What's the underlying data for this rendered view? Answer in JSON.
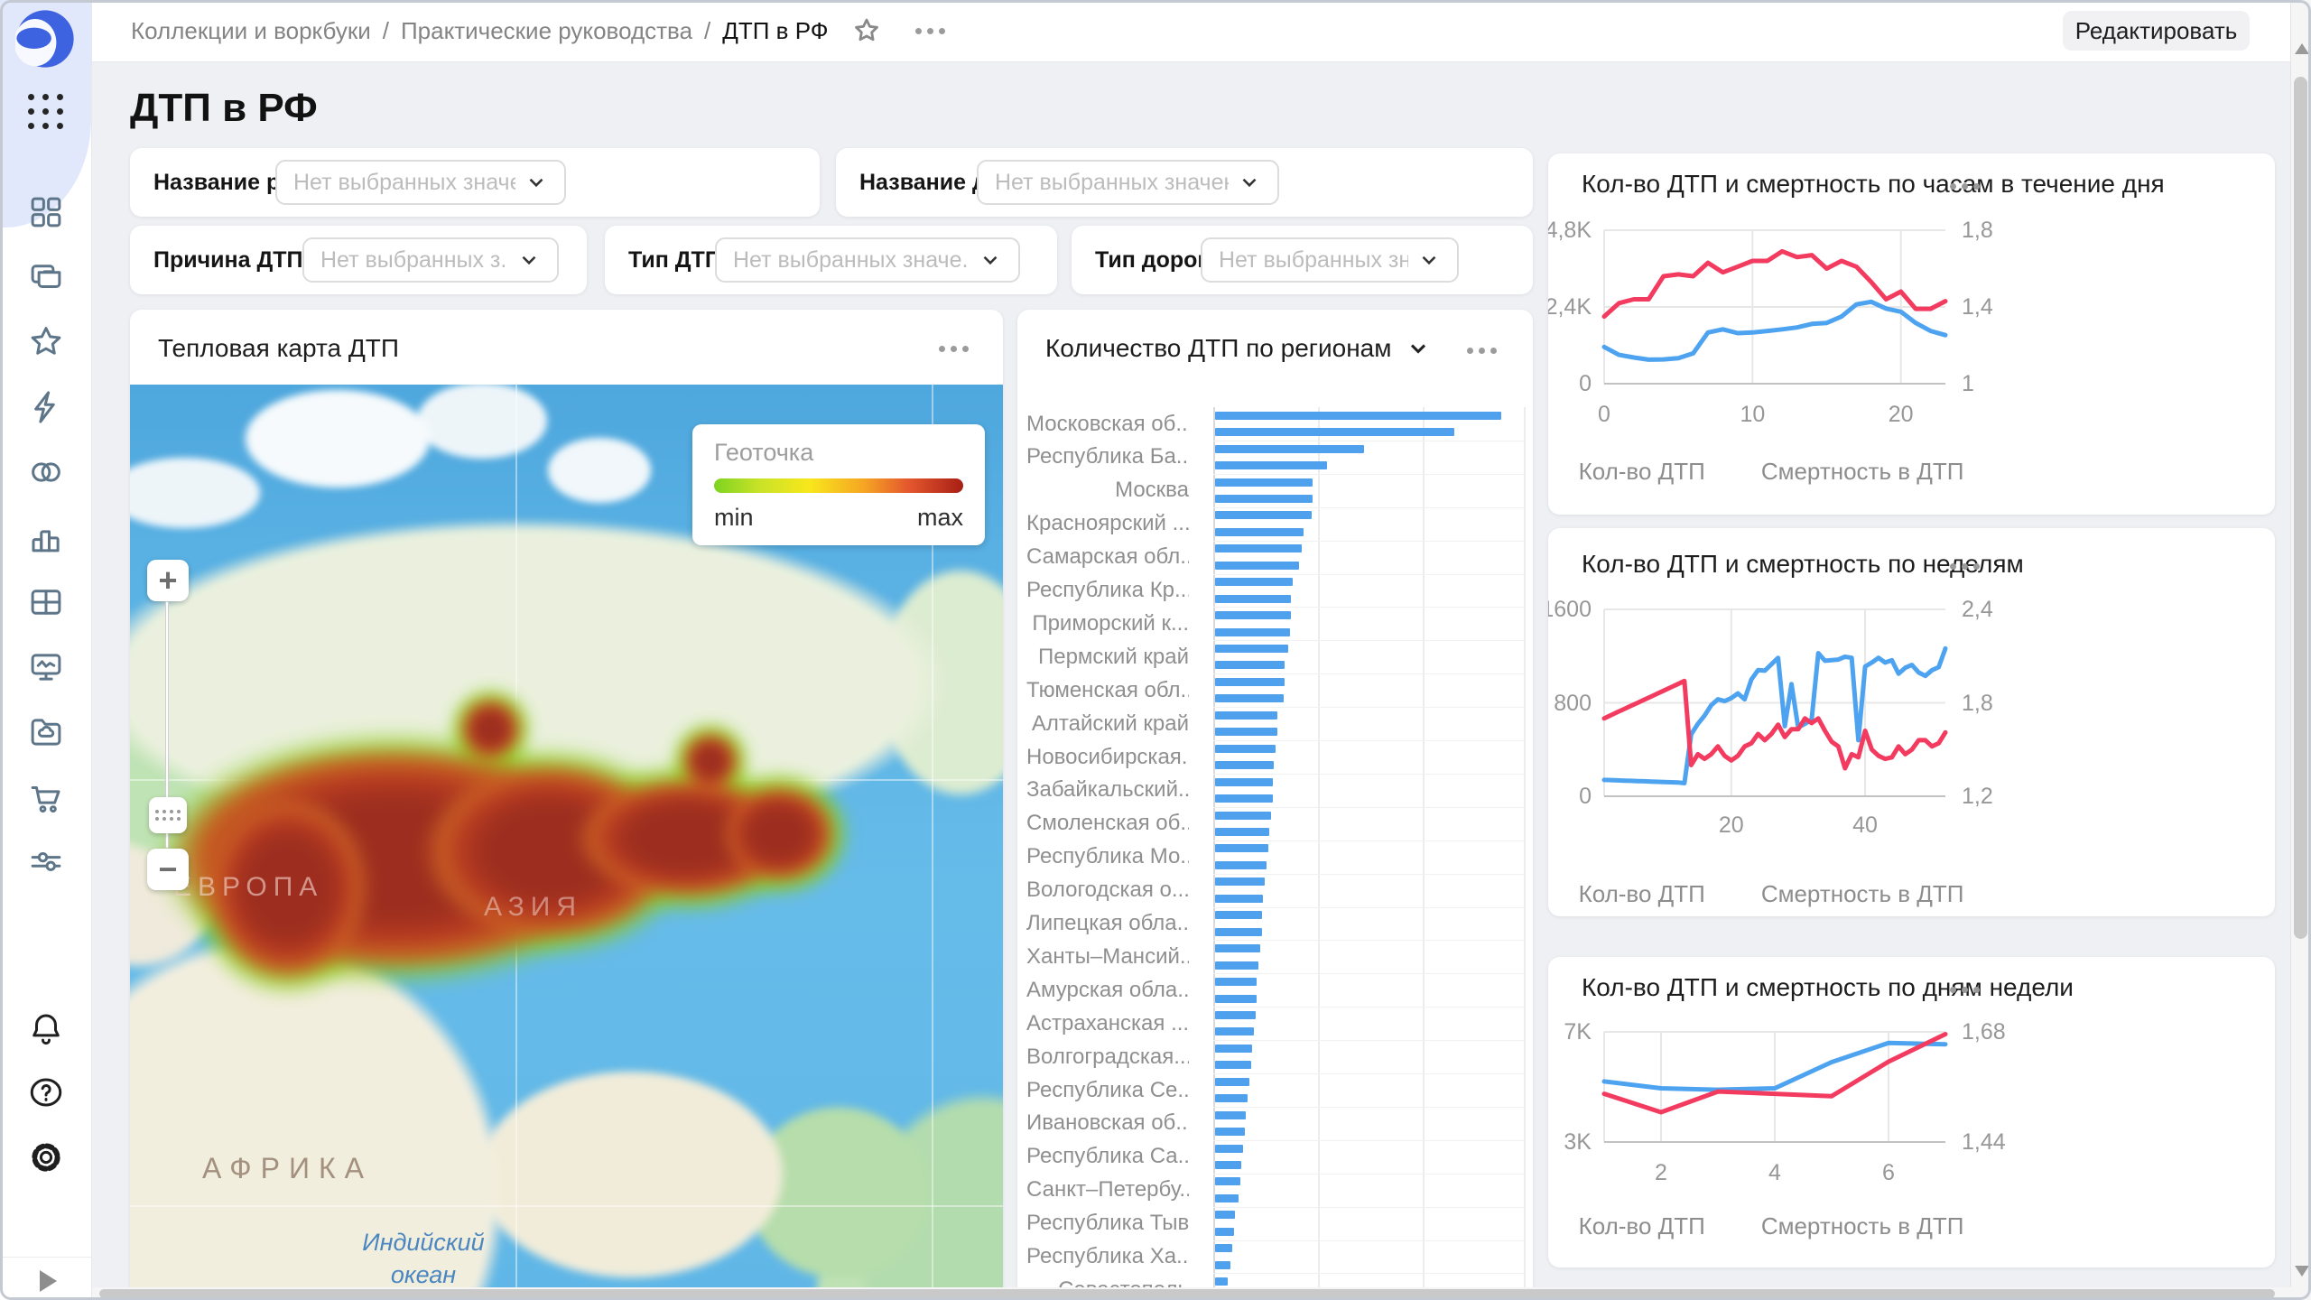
{
  "colors": {
    "accent_blue": "#4da3f0",
    "accent_red": "#f23b5f",
    "bar_blue": "#4fa1ee",
    "page_bg": "#eef0f4",
    "sidebar_logo_bg": "#e2e8fb"
  },
  "chrome": {
    "breadcrumb": [
      "Коллекции и воркбуки",
      "Практические руководства",
      "ДТП в РФ"
    ],
    "separator": "/",
    "edit_label": "Редактировать"
  },
  "sidebar": {
    "icons": [
      "logo",
      "apps-grid",
      "dashboards-grid",
      "collections",
      "star",
      "lightning",
      "datasets-circles",
      "bar-chart",
      "table",
      "monitor-pulse",
      "folder-cloud",
      "cart",
      "sliders",
      "bell",
      "help",
      "gear",
      "expand"
    ]
  },
  "page_title": "ДТП в РФ",
  "filters": {
    "row1": [
      {
        "label": "Название региона",
        "placeholder": "Нет выбранных значений"
      },
      {
        "label": "Название дороги",
        "placeholder": "Нет выбранных значений"
      }
    ],
    "row2": [
      {
        "label": "Причина ДТП",
        "placeholder": "Нет выбранных з..."
      },
      {
        "label": "Тип ДТП",
        "placeholder": "Нет выбранных значе..."
      },
      {
        "label": "Тип дороги",
        "placeholder": "Нет выбранных зна..."
      }
    ]
  },
  "heatmap": {
    "title": "Тепловая карта ДТП",
    "legend": {
      "title": "Геоточка",
      "min": "min",
      "max": "max"
    },
    "controls": {
      "zoom_in": "+",
      "zoom_out": "−"
    },
    "map_labels": {
      "europe": "ЕВРОПА",
      "asia": "АЗИЯ",
      "africa": "АФРИКА",
      "ocean_line1": "Индийский",
      "ocean_line2": "океан"
    }
  },
  "regions": {
    "title": "Количество ДТП по регионам",
    "chart_data": {
      "type": "bar",
      "orientation": "horizontal",
      "note": "two bars per visible category label; values are percent of x-axis span",
      "categories": [
        "Московская об...",
        "Республика Ба...",
        "Москва",
        "Красноярский ...",
        "Самарская обл...",
        "Республика Кр...",
        "Приморский к...",
        "Пермский край",
        "Тюменская обл...",
        "Алтайский край",
        "Новосибирская...",
        "Забайкальский...",
        "Смоленская об...",
        "Республика Мо...",
        "Вологодская о...",
        "Липецкая обла...",
        "Ханты–Мансий...",
        "Амурская обла...",
        "Астраханская ...",
        "Волгоградская...",
        "Республика Се...",
        "Ивановская об...",
        "Республика Са...",
        "Санкт–Петербу...",
        "Республика Тыва",
        "Республика Ха...",
        "Севастополь"
      ],
      "values": [
        92,
        77,
        48,
        36,
        31.5,
        31.5,
        31,
        28.5,
        28,
        27,
        25,
        24.5,
        24.5,
        24,
        23.5,
        22.5,
        22.5,
        22,
        20,
        20,
        19.5,
        19,
        18.5,
        18.5,
        18,
        17.5,
        17,
        16.5,
        16,
        15.5,
        15,
        15,
        14.5,
        14,
        13.5,
        13.5,
        13,
        12.5,
        12,
        11.5,
        11,
        10.5,
        10,
        9.5,
        9,
        8.5,
        8,
        7.5,
        6.5,
        6,
        5.5,
        5,
        4,
        3
      ]
    }
  },
  "right_charts": [
    {
      "title": "Кол-во ДТП и смертность по часам в течение дня",
      "chart_data": {
        "type": "line",
        "x": {
          "min": 0,
          "max": 23,
          "ticks": [
            {
              "v": 0,
              "label": "0"
            },
            {
              "v": 10,
              "label": "10"
            },
            {
              "v": 20,
              "label": "20"
            }
          ]
        },
        "left": {
          "min": 0,
          "max": 4800,
          "ticks": [
            {
              "v": 4800,
              "label": "4,8K"
            },
            {
              "v": 2400,
              "label": "2,4K"
            },
            {
              "v": 0,
              "label": "0"
            }
          ]
        },
        "right": {
          "min": 1,
          "max": 1.8,
          "ticks": [
            {
              "v": 1.8,
              "label": "1,8"
            },
            {
              "v": 1.4,
              "label": "1,4"
            },
            {
              "v": 1,
              "label": "1"
            }
          ]
        },
        "series": [
          {
            "name": "Кол-во ДТП",
            "color": "blue",
            "axis": "left",
            "values": [
              1150,
              900,
              820,
              750,
              760,
              800,
              950,
              1600,
              1700,
              1580,
              1600,
              1650,
              1700,
              1760,
              1870,
              1900,
              2100,
              2480,
              2560,
              2350,
              2250,
              1900,
              1650,
              1520
            ]
          },
          {
            "name": "Смертность в ДТП",
            "color": "red",
            "axis": "right",
            "values": [
              1.35,
              1.42,
              1.44,
              1.44,
              1.56,
              1.57,
              1.56,
              1.63,
              1.58,
              1.61,
              1.64,
              1.64,
              1.69,
              1.66,
              1.67,
              1.6,
              1.64,
              1.61,
              1.53,
              1.44,
              1.48,
              1.39,
              1.39,
              1.43
            ]
          }
        ]
      }
    },
    {
      "title": "Кол-во ДТП и смертность по неделям",
      "chart_data": {
        "type": "line",
        "x": {
          "min": 1,
          "max": 52,
          "ticks": [
            {
              "v": 20,
              "label": "20"
            },
            {
              "v": 40,
              "label": "40"
            }
          ]
        },
        "left": {
          "min": 0,
          "max": 1600,
          "ticks": [
            {
              "v": 1600,
              "label": "1600"
            },
            {
              "v": 800,
              "label": "800"
            },
            {
              "v": 0,
              "label": "0"
            }
          ]
        },
        "right": {
          "min": 1.2,
          "max": 2.4,
          "ticks": [
            {
              "v": 2.4,
              "label": "2,4"
            },
            {
              "v": 1.8,
              "label": "1,8"
            },
            {
              "v": 1.2,
              "label": "1,2"
            }
          ]
        },
        "series": [
          {
            "name": "Кол-во ДТП",
            "color": "blue",
            "axis": "left",
            "values": [
              140,
              138,
              136,
              134,
              132,
              130,
              128,
              126,
              124,
              122,
              120,
              118,
              112,
              530,
              620,
              690,
              780,
              830,
              815,
              840,
              880,
              830,
              1000,
              1080,
              1075,
              1130,
              1185,
              600,
              960,
              590,
              620,
              655,
              1225,
              1160,
              1165,
              1170,
              1195,
              1185,
              480,
              1110,
              1145,
              1185,
              1145,
              1165,
              1050,
              1100,
              1125,
              1060,
              1030,
              1080,
              1105,
              1265
            ]
          },
          {
            "name": "Смертность в ДТП",
            "color": "red",
            "axis": "right",
            "values": [
              1.7,
              1.72,
              1.74,
              1.76,
              1.78,
              1.8,
              1.82,
              1.84,
              1.86,
              1.88,
              1.9,
              1.92,
              1.94,
              1.4,
              1.47,
              1.44,
              1.47,
              1.52,
              1.46,
              1.43,
              1.46,
              1.52,
              1.54,
              1.6,
              1.56,
              1.6,
              1.66,
              1.58,
              1.63,
              1.63,
              1.7,
              1.67,
              1.7,
              1.62,
              1.55,
              1.52,
              1.38,
              1.47,
              1.45,
              1.62,
              1.5,
              1.46,
              1.44,
              1.45,
              1.52,
              1.47,
              1.5,
              1.56,
              1.56,
              1.52,
              1.54,
              1.61
            ]
          }
        ]
      }
    },
    {
      "title": "Кол-во ДТП и смертность по дням недели",
      "chart_data": {
        "type": "line",
        "x": {
          "min": 1,
          "max": 7,
          "ticks": [
            {
              "v": 2,
              "label": "2"
            },
            {
              "v": 4,
              "label": "4"
            },
            {
              "v": 6,
              "label": "6"
            }
          ]
        },
        "left": {
          "min": 3000,
          "max": 7000,
          "ticks": [
            {
              "v": 7000,
              "label": "7K"
            },
            {
              "v": 3000,
              "label": "3K"
            }
          ]
        },
        "right": {
          "min": 1.44,
          "max": 1.68,
          "ticks": [
            {
              "v": 1.68,
              "label": "1,68"
            },
            {
              "v": 1.44,
              "label": "1,44"
            }
          ]
        },
        "series": [
          {
            "name": "Кол-во ДТП",
            "color": "blue",
            "axis": "left",
            "values": [
              5200,
              4950,
              4900,
              4950,
              5900,
              6600,
              6550
            ]
          },
          {
            "name": "Смертность в ДТП",
            "color": "red",
            "axis": "right",
            "values": [
              1.545,
              1.505,
              1.55,
              1.545,
              1.54,
              1.615,
              1.675
            ]
          }
        ]
      }
    }
  ]
}
